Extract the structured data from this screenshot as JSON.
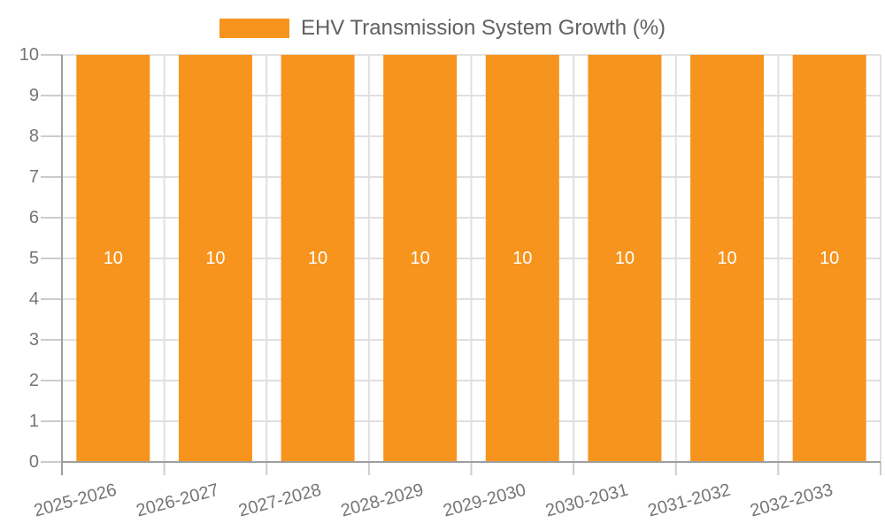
{
  "chart_data": {
    "type": "bar",
    "title": "EHV Transmission System Growth (%)",
    "categories": [
      "2025-2026",
      "2026-2027",
      "2027-2028",
      "2028-2029",
      "2029-2030",
      "2030-2031",
      "2031-2032",
      "2032-2033"
    ],
    "series": [
      {
        "name": "EHV Transmission System Growth (%)",
        "values": [
          10,
          10,
          10,
          10,
          10,
          10,
          10,
          10
        ]
      }
    ],
    "bar_value_labels": [
      "10",
      "10",
      "10",
      "10",
      "10",
      "10",
      "10",
      "10"
    ],
    "xlabel": "",
    "ylabel": "",
    "ylim": [
      0,
      10
    ],
    "y_tick_labels": [
      "0",
      "1",
      "2",
      "3",
      "4",
      "5",
      "6",
      "7",
      "8",
      "9",
      "10"
    ],
    "grid": true,
    "legend_position": "top-center",
    "x_label_rotation_deg": -15,
    "colors": {
      "bar": "#F7941E",
      "grid": "#E0E0E0",
      "tick_stub": "#CCCCCC",
      "axis": "#9E9E9E",
      "tick_label": "#757575",
      "bar_label": "#FFFFFF",
      "legend_text": "#616161"
    }
  }
}
